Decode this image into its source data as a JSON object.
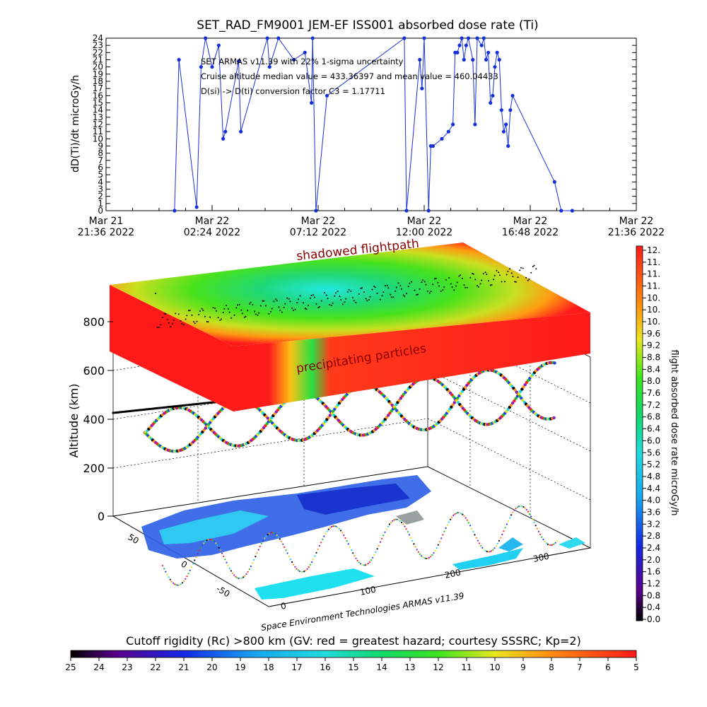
{
  "colors": {
    "series": "#1530d8",
    "axis": "#000000",
    "red": "#ff1a1a",
    "green": "#22dd22",
    "cyan": "#22dddd"
  },
  "chart_data": [
    {
      "type": "line",
      "title": "SET_RAD_FM9001  JEM-EF ISS001 absorbed dose rate (Ti)",
      "ylabel": "dD(Ti)/dt microGy/h",
      "ylim": [
        0,
        24
      ],
      "yticks": [
        "0",
        "1",
        "2",
        "3",
        "4",
        "5",
        "6",
        "7",
        "8",
        "9",
        "10",
        "11",
        "12",
        "13",
        "14",
        "15",
        "16",
        "17",
        "18",
        "19",
        "20",
        "21",
        "22",
        "23",
        "24"
      ],
      "xticks": [
        {
          "line1": "Mar 21",
          "line2": "21:36 2022"
        },
        {
          "line1": "Mar 22",
          "line2": "02:24 2022"
        },
        {
          "line1": "Mar 22",
          "line2": "07:12 2022"
        },
        {
          "line1": "Mar 22",
          "line2": "12:00 2022"
        },
        {
          "line1": "Mar 22",
          "line2": "16:48 2022"
        },
        {
          "line1": "Mar 22",
          "line2": "21:36 2022"
        }
      ],
      "xrange_hours": [
        0,
        24
      ],
      "annotations": [
        "SET ARMAS v11.39 with 22% 1-sigma uncertainty",
        "Cruise altitude median value = 433.36397 and mean value = 460.04433",
        "D(si) -> D(ti) conversion factor C3 = 1.17711"
      ],
      "series": [
        {
          "x": [
            3.1,
            3.3,
            4.1,
            4.3,
            4.5,
            4.8,
            5.1,
            5.3,
            5.4,
            6.0,
            6.1,
            7.3,
            7.4,
            7.8,
            8.5,
            9.0,
            9.3,
            9.35,
            9.5,
            10.0,
            13.5,
            13.6,
            14.2,
            14.3,
            14.4,
            14.6,
            14.7,
            14.8,
            15.2,
            15.5,
            15.7,
            15.8,
            15.9,
            16.0,
            16.1,
            16.2,
            16.3,
            16.4,
            16.6,
            16.7,
            16.8,
            17.0,
            17.1,
            17.2,
            17.3,
            17.4,
            17.5,
            17.6,
            17.7,
            17.8,
            17.9,
            18.0,
            18.1,
            18.2,
            18.3,
            18.4,
            20.3,
            20.6,
            21.1
          ],
          "y": [
            0,
            21,
            0.5,
            20,
            24,
            20,
            23,
            10,
            11,
            20.8,
            11,
            24,
            20,
            24,
            21,
            22,
            15,
            24,
            0,
            16,
            24,
            0,
            21,
            17,
            24,
            0,
            9,
            9,
            10,
            11,
            12,
            22,
            22,
            23,
            24,
            21,
            23,
            24,
            21,
            12,
            24,
            23,
            24,
            21,
            22,
            15,
            16,
            20,
            22,
            21,
            14,
            11,
            12,
            9,
            14,
            16,
            4,
            0,
            0
          ]
        }
      ]
    },
    {
      "type": "heatmap",
      "subtype": "3d-orbit-dose",
      "ylabel": "Altitude (km)",
      "zticks": [
        "0",
        "200",
        "400",
        "600",
        "800"
      ],
      "lon_ticks": [
        "0",
        "100",
        "200",
        "300"
      ],
      "lat_ticks": [
        "-50",
        "0",
        "50"
      ],
      "labels": {
        "top_shadow": "shadowed flightpath",
        "precip": "precipitating particles",
        "credit": "Space Environment Technologies ARMAS v11.39"
      },
      "colorbar": {
        "label": "flight absorbed dose rate microGy/h",
        "range": [
          0,
          12
        ],
        "ticks": [
          "12.",
          "11.",
          "11.",
          "11.",
          "10.",
          "10.",
          "10.",
          "9.6",
          "9.2",
          "8.8",
          "8.4",
          "8.0",
          "7.6",
          "7.2",
          "6.8",
          "6.4",
          "6.0",
          "5.6",
          "5.2",
          "4.8",
          "4.4",
          "4.0",
          "3.6",
          "3.2",
          "2.8",
          "2.4",
          "2.0",
          "1.6",
          "1.2",
          "0.8",
          "0.4",
          "0.0"
        ]
      }
    },
    {
      "type": "colorbar",
      "title": "Cutoff rigidity (Rc) >800 km (GV: red = greatest hazard; courtesy SSSRC; Kp=2)",
      "ticks": [
        "25",
        "24",
        "23",
        "22",
        "21",
        "20",
        "19",
        "18",
        "17",
        "16",
        "15",
        "14",
        "13",
        "12",
        "11",
        "10",
        "9",
        "8",
        "7",
        "6",
        "5"
      ],
      "range": [
        25,
        5
      ]
    }
  ]
}
